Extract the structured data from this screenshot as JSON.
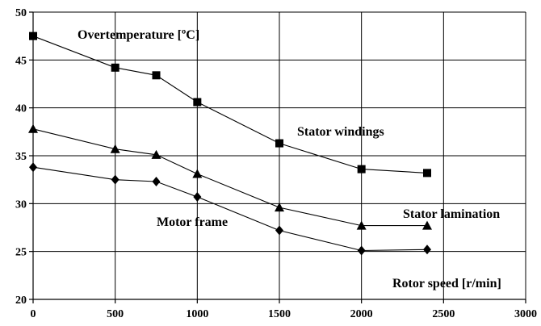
{
  "chart_data": {
    "type": "line",
    "title": "",
    "xlabel": "Rotor speed [r/min]",
    "ylabel": "Overtemperature [ºC]",
    "xlim": [
      0,
      3000
    ],
    "ylim": [
      20,
      50
    ],
    "x_ticks": [
      0,
      500,
      1000,
      1500,
      2000,
      2500,
      3000
    ],
    "y_ticks": [
      20,
      25,
      30,
      35,
      40,
      45,
      50
    ],
    "x_tick_labels": [
      "0",
      "500",
      "1000",
      "1500",
      "2000",
      "2500",
      "3000"
    ],
    "y_tick_labels": [
      "20",
      "25",
      "30",
      "35",
      "40",
      "45",
      "50"
    ],
    "grid": true,
    "legend": "none",
    "series": [
      {
        "name": "Stator windings",
        "marker": "square",
        "x": [
          0,
          500,
          750,
          1000,
          1500,
          2000,
          2400
        ],
        "y": [
          47.5,
          44.2,
          43.4,
          40.6,
          36.3,
          33.6,
          33.2
        ]
      },
      {
        "name": "Stator lamination",
        "marker": "triangle",
        "x": [
          0,
          500,
          750,
          1000,
          1500,
          2000,
          2400
        ],
        "y": [
          37.8,
          35.7,
          35.1,
          33.1,
          29.6,
          27.7,
          27.7
        ]
      },
      {
        "name": "Motor frame",
        "marker": "diamond",
        "x": [
          0,
          500,
          750,
          1000,
          1500,
          2000,
          2400
        ],
        "y": [
          33.8,
          32.5,
          32.3,
          30.7,
          27.2,
          25.1,
          25.2
        ]
      }
    ]
  }
}
